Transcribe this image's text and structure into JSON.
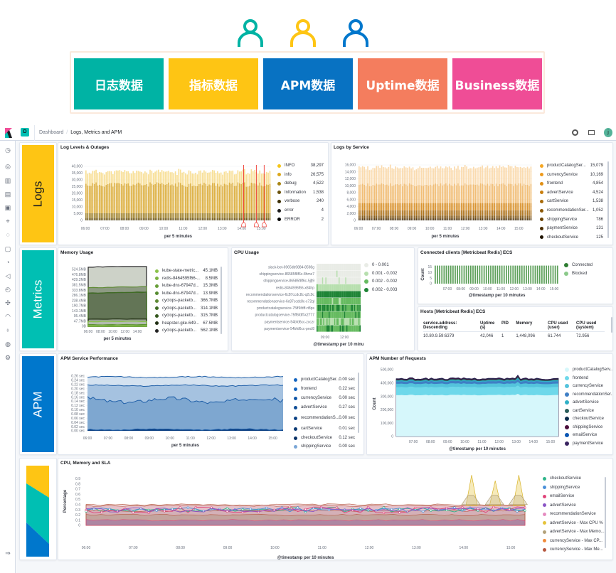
{
  "banner": {
    "people": [
      {
        "color": "#00b3a4"
      },
      {
        "color": "#fec514"
      },
      {
        "color": "#0077cc"
      }
    ],
    "tiles": [
      {
        "label": "日志数据",
        "color": "#00b3a4"
      },
      {
        "label": "指标数据",
        "color": "#fec514"
      },
      {
        "label": "APM数据",
        "color": "#0872c2"
      },
      {
        "label": "Uptime数据",
        "color": "#f47d5e"
      },
      {
        "label": "Business数据",
        "color": "#ef4d96"
      }
    ]
  },
  "header": {
    "space_badge": "D",
    "breadcrumb_parent": "Dashboard",
    "breadcrumb_current": "Logs, Metrics and APM",
    "avatar": "j"
  },
  "sidebar": {
    "icons": [
      "clock-icon",
      "compass-icon",
      "visualize-icon",
      "dashboard-icon",
      "canvas-icon",
      "maps-icon",
      "ml-icon",
      "infra-icon",
      "logs-icon",
      "apm-icon",
      "uptime-icon",
      "siem-icon",
      "graph-icon",
      "dev-tools-icon",
      "monitoring-icon",
      "management-icon"
    ],
    "collapse_icon": "⇒"
  },
  "sections": {
    "logs": {
      "label": "Logs",
      "color": "#fec514",
      "text_color": "#1a1c21"
    },
    "metrics": {
      "label": "Metrics",
      "color": "#00bfb3",
      "text_color": "#ffffff"
    },
    "apm": {
      "label": "APM",
      "color": "#0077cc",
      "text_color": "#ffffff"
    }
  },
  "chart_data": [
    {
      "id": "log-levels",
      "type": "bar",
      "title": "Log Levels & Outages",
      "xlabel": "per 5 minutes",
      "x_ticks": [
        "06:00",
        "07:00",
        "08:00",
        "09:00",
        "10:00",
        "11:00",
        "12:00",
        "13:00",
        "14:00",
        "15:00"
      ],
      "y_ticks": [
        "0",
        "5,000",
        "10,000",
        "15,000",
        "20,000",
        "25,000",
        "30,000",
        "35,000",
        "40,000"
      ],
      "ylim": [
        0,
        40000
      ],
      "stacked_typical_per_bucket": [
        {
          "name": "verbose",
          "value": 300,
          "color": "#3d2f05"
        },
        {
          "name": "Information",
          "value": 1500,
          "color": "#6b520c"
        },
        {
          "name": "debug",
          "value": 3500,
          "color": "#9a7a1c"
        },
        {
          "name": "info",
          "value": 21700,
          "color": "#d9a72c"
        },
        {
          "name": "INFO",
          "value": 9500,
          "color": "#f7dc8b"
        }
      ],
      "annotations": [
        14.1,
        14.75,
        15.15
      ],
      "legend": [
        {
          "label": "INFO",
          "value": "38,297",
          "color": "#f5c518"
        },
        {
          "label": "info",
          "value": "26,575",
          "color": "#dca81a"
        },
        {
          "label": "debug",
          "value": "4,522",
          "color": "#a98514"
        },
        {
          "label": "Information",
          "value": "1,538",
          "color": "#6b520c"
        },
        {
          "label": "verbose",
          "value": "240",
          "color": "#3d2f05"
        },
        {
          "label": "error",
          "value": "4",
          "color": "#1a1a1a"
        },
        {
          "label": "ERROR",
          "value": "2",
          "color": "#000000"
        }
      ]
    },
    {
      "id": "logs-by-service",
      "type": "bar",
      "title": "Logs by Service",
      "xlabel": "per 5 minutes",
      "x_ticks": [
        "06:00",
        "07:00",
        "08:00",
        "09:00",
        "10:00",
        "11:00",
        "12:00",
        "13:00",
        "14:00",
        "15:00"
      ],
      "y_ticks": [
        "0",
        "2,000",
        "4,000",
        "6,000",
        "8,000",
        "10,000",
        "12,000",
        "14,000",
        "16,000"
      ],
      "ylim": [
        0,
        16000
      ],
      "stacked_typical_per_bucket": [
        {
          "name": "checkoutService",
          "value": 300,
          "color": "#3b2400"
        },
        {
          "name": "paymentService",
          "value": 400,
          "color": "#5a3703"
        },
        {
          "name": "shippingService",
          "value": 700,
          "color": "#7b4c06"
        },
        {
          "name": "cartService",
          "value": 1500,
          "color": "#a8690c"
        },
        {
          "name": "advertService",
          "value": 2100,
          "color": "#d68a1c"
        },
        {
          "name": "frontend",
          "value": 5400,
          "color": "#f0b768"
        },
        {
          "name": "productCatalogService",
          "value": 5100,
          "color": "#fad7a6"
        }
      ],
      "legend": [
        {
          "label": "productCatalogSer...",
          "value": "15,079",
          "color": "#f5a623"
        },
        {
          "label": "currencyService",
          "value": "10,169",
          "color": "#ee9a1c"
        },
        {
          "label": "frontend",
          "value": "4,854",
          "color": "#e08f14"
        },
        {
          "label": "advertService",
          "value": "4,524",
          "color": "#c97f0f"
        },
        {
          "label": "cartService",
          "value": "1,538",
          "color": "#a86b0a"
        },
        {
          "label": "recommendationSer...",
          "value": "1,052",
          "color": "#8a5706"
        },
        {
          "label": "shippingService",
          "value": "786",
          "color": "#6b4304"
        },
        {
          "label": "paymentService",
          "value": "131",
          "color": "#4d2f02"
        },
        {
          "label": "checkoutService",
          "value": "125",
          "color": "#1e1200"
        }
      ]
    },
    {
      "id": "memory-usage",
      "type": "area",
      "title": "Memory Usage",
      "xlabel": "per 5 minutes",
      "x_ticks": [
        "06:00",
        "08:00",
        "10:00",
        "12:00",
        "14:00"
      ],
      "y_ticks": [
        "0B",
        "47.7MB",
        "95.4MB",
        "143.1MB",
        "190.7MB",
        "238.4MB",
        "286.1MB",
        "333.8MB",
        "381.5MB",
        "429.2MB",
        "476.8MB",
        "524.5MB"
      ],
      "ylim_mb": [
        0,
        524.5
      ],
      "legend": [
        {
          "label": "kube-state-metric...",
          "value": "45.1MB",
          "mb": 45.1,
          "color": "#8bc34a"
        },
        {
          "label": "redis-8464595f66-...",
          "value": "8.5MB",
          "mb": 8.5,
          "color": "#7cb342"
        },
        {
          "label": "kube-dns-67947d...",
          "value": "15.3MB",
          "mb": 15.3,
          "color": "#689f38"
        },
        {
          "label": "kube-dns-67947d...",
          "value": "13.9MB",
          "mb": 13.9,
          "color": "#558b2f"
        },
        {
          "label": "cyclops-packetb...",
          "value": "366.7MB",
          "mb": 366.7,
          "color": "#5e8a34"
        },
        {
          "label": "cyclops-packetb...",
          "value": "314.1MB",
          "mb": 314.1,
          "color": "#3e6b23"
        },
        {
          "label": "cyclops-packetb...",
          "value": "315.7MB",
          "mb": 315.7,
          "color": "#33561c"
        },
        {
          "label": "heapster-gke-649...",
          "value": "67.5MB",
          "mb": 67.5,
          "color": "#1f2d12"
        },
        {
          "label": "cyclops-packetb...",
          "value": "562.1MB",
          "mb": 562.1,
          "color": "#222222"
        }
      ]
    },
    {
      "id": "cpu-usage",
      "type": "heatmap",
      "title": "CPU Usage",
      "xlabel": "@timestamp per 10 minu",
      "x_ticks": [
        "09:00",
        "12:00"
      ],
      "rows": [
        {
          "label": "slack-bot-6965db9884-8598g",
          "level": 0,
          "alt": 0,
          "mix": 0.0
        },
        {
          "label": "shippingservice-86585f8f6c-8hmx7",
          "level": 0,
          "alt": 1,
          "mix": 0.05
        },
        {
          "label": "shippingservice-86585f8f6c-5jfj9",
          "level": 0,
          "alt": 1,
          "mix": 0.05
        },
        {
          "label": "redis-8464595f66-x84hp",
          "level": 1,
          "alt": 2,
          "mix": 0.05
        },
        {
          "label": "recommendationservice-6c87ccdc8c-q2c9c",
          "level": 3,
          "alt": 3,
          "mix": 0.0
        },
        {
          "label": "recommendationservice-6c87ccdc8c-c72ql",
          "level": 2,
          "alt": 1,
          "mix": 0.2
        },
        {
          "label": "productcatalogservice-75ff6fdff-rt8ps",
          "level": 3,
          "alt": 2,
          "mix": 0.45
        },
        {
          "label": "productcatalogservice-75ff6fdff-k2777",
          "level": 2,
          "alt": 3,
          "mix": 0.1
        },
        {
          "label": "paymentservice-54bfd6cc-zxczr",
          "level": 2,
          "alt": 1,
          "mix": 0.5
        },
        {
          "label": "paymentservice-54bfd6cc-pncl8",
          "level": 2,
          "alt": 3,
          "mix": 0.25
        }
      ],
      "legend": [
        {
          "label": "0 - 0.001",
          "color": "#e9ece6"
        },
        {
          "label": "0.001 - 0.002",
          "color": "#b7dfae"
        },
        {
          "label": "0.002 - 0.002",
          "color": "#66bb60"
        },
        {
          "label": "0.002 - 0.003",
          "color": "#1e8436"
        }
      ]
    },
    {
      "id": "connected-clients",
      "type": "bar",
      "title": "Connected clients [Metricbeat Redis] ECS",
      "xlabel": "@timestamp per 10 minutes",
      "ylabel": "Count",
      "x_ticks": [
        "07:00",
        "08:00",
        "09:00",
        "10:00",
        "11:00",
        "12:00",
        "13:00",
        "14:00",
        "15:00"
      ],
      "y_ticks": [
        "0",
        "5",
        "10",
        "15"
      ],
      "ylim": [
        0,
        17
      ],
      "typical_value": 16,
      "legend": [
        {
          "label": "Connected",
          "color": "#2e7d32"
        },
        {
          "label": "Blocked",
          "color": "#8bc98a"
        }
      ]
    },
    {
      "id": "apm-service-performance",
      "type": "area",
      "title": "APM Service Performance",
      "xlabel": "per 5 minutes",
      "x_ticks": [
        "06:00",
        "07:00",
        "08:00",
        "09:00",
        "10:00",
        "11:00",
        "12:00",
        "13:00",
        "14:00",
        "15:00"
      ],
      "y_ticks": [
        "0.00 sec",
        "0.02 sec",
        "0.04 sec",
        "0.06 sec",
        "0.08 sec",
        "0.10 sec",
        "0.12 sec",
        "0.14 sec",
        "0.16 sec",
        "0.18 sec",
        "0.20 sec",
        "0.22 sec",
        "0.24 sec",
        "0.26 sec"
      ],
      "ylim": [
        0,
        0.26
      ],
      "stack_levels_sec": [
        {
          "name": "checkoutService",
          "value": 0.006,
          "color": "#0b3f82"
        },
        {
          "name": "advertService",
          "value": 0.145,
          "color": "#7ea7d0"
        },
        {
          "name": "frontend",
          "value": 0.215,
          "color": "#a5c2e0"
        },
        {
          "name": "productCatalogService",
          "value": 0.255,
          "color": "#d4e2f0"
        }
      ],
      "legend": [
        {
          "label": "productCatalogSer...",
          "value": "0.00 sec",
          "color": "#1565c0"
        },
        {
          "label": "frontend",
          "value": "0.22 sec",
          "color": "#1565c0"
        },
        {
          "label": "currencyService",
          "value": "0.00 sec",
          "color": "#1257a8"
        },
        {
          "label": "advertService",
          "value": "0.27 sec",
          "color": "#0f4d96"
        },
        {
          "label": "recommendationS...",
          "value": "0.00 sec",
          "color": "#0d4385"
        },
        {
          "label": "cartService",
          "value": "0.01 sec",
          "color": "#0b3a74"
        },
        {
          "label": "checkoutService",
          "value": "0.12 sec",
          "color": "#0a3166"
        },
        {
          "label": "shippingService",
          "value": "0.00 sec",
          "color": "#7aa6d6"
        }
      ]
    },
    {
      "id": "apm-number-of-requests",
      "type": "area",
      "title": "APM Number of Requests",
      "xlabel": "@timestamp per 10 minutes",
      "ylabel": "Count",
      "x_ticks": [
        "07:00",
        "08:00",
        "09:00",
        "10:00",
        "11:00",
        "12:00",
        "13:00",
        "14:00",
        "15:00"
      ],
      "y_ticks": [
        "0",
        "100,000",
        "200,000",
        "300,000",
        "400,000",
        "500,000"
      ],
      "ylim": [
        0,
        500000
      ],
      "stack_levels": [
        310000,
        370000,
        395000,
        412000,
        420000,
        426000,
        431000,
        434000
      ],
      "legend": [
        {
          "label": "productCatalogServ...",
          "color": "#d6f7fb"
        },
        {
          "label": "frontend",
          "color": "#6ed8ea"
        },
        {
          "label": "currencyService",
          "color": "#54c3dc"
        },
        {
          "label": "recommendationSer...",
          "color": "#3f7fc5"
        },
        {
          "label": "advertService",
          "color": "#2fb0c6"
        },
        {
          "label": "cartService",
          "color": "#2b5d5a"
        },
        {
          "label": "checkoutService",
          "color": "#0b2a4a"
        },
        {
          "label": "shippingService",
          "color": "#4a0e3a"
        },
        {
          "label": "emailService",
          "color": "#0b56b3"
        },
        {
          "label": "paymentService",
          "color": "#3a2460"
        }
      ]
    },
    {
      "id": "cpu-memory-sla",
      "type": "line",
      "title": "CPU, Memory and SLA",
      "xlabel": "@timestamp per 10 minutes",
      "ylabel": "Percentage",
      "x_ticks": [
        "06:00",
        "07:00",
        "08:00",
        "09:00",
        "10:00",
        "11:00",
        "12:00",
        "13:00",
        "14:00",
        "15:00"
      ],
      "y_ticks": [
        "0",
        "0.1",
        "0.2",
        "0.3",
        "0.4",
        "0.5",
        "0.6",
        "0.7",
        "0.8",
        "0.9"
      ],
      "ylim": [
        0,
        1
      ],
      "band_levels": [
        0.1,
        0.2,
        0.28,
        0.38,
        0.4
      ],
      "spikes": [
        {
          "t": 14.17,
          "v": 0.97
        },
        {
          "t": 14.67,
          "v": 0.86
        },
        {
          "t": 15.17,
          "v": 0.97
        }
      ],
      "legend": [
        {
          "label": "checkoutService",
          "color": "#2fb58a"
        },
        {
          "label": "shippingService",
          "color": "#4a90d9"
        },
        {
          "label": "emailService",
          "color": "#e0457b"
        },
        {
          "label": "advertService",
          "color": "#8a55c5"
        },
        {
          "label": "recommendationService",
          "color": "#e58cc1"
        },
        {
          "label": "advertService - Max CPU %",
          "color": "#e5c33a"
        },
        {
          "label": "advertService - Max Memo...",
          "color": "#b3a27a"
        },
        {
          "label": "currencyService - Max CP...",
          "color": "#f08a3a"
        },
        {
          "label": "currencyService - Max Me...",
          "color": "#b5573f"
        }
      ]
    }
  ],
  "hosts_table": {
    "title": "Hosts [Metricbeat Redis] ECS",
    "headers": [
      "service.address: Descending",
      "Uptime (s)",
      "PID",
      "Memory",
      "CPU used (user)",
      "CPU used (system)"
    ],
    "rows": [
      [
        "10.80.9.59:6379",
        "42,046",
        "1",
        "1,448,096",
        "61.744",
        "72.956"
      ]
    ]
  }
}
